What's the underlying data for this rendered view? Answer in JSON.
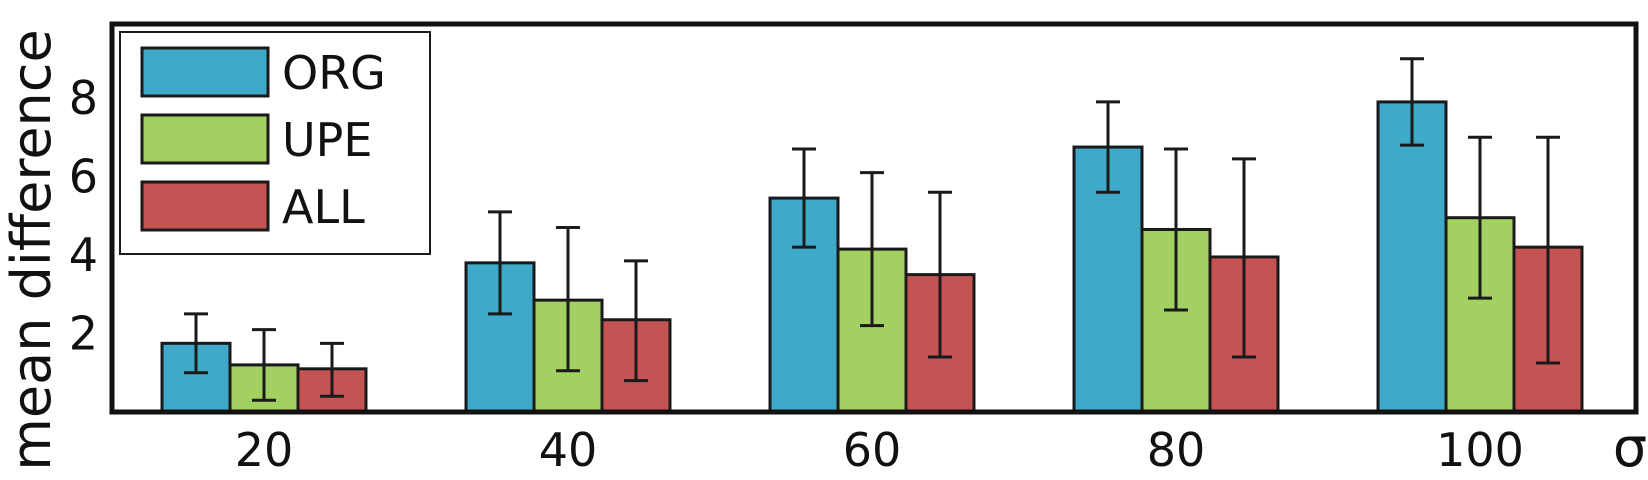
{
  "chart_data": {
    "type": "bar",
    "categories": [
      "20",
      "40",
      "60",
      "80",
      "100"
    ],
    "series": [
      {
        "name": "ORG",
        "color": "#3fa9c9",
        "values": [
          1.75,
          3.8,
          5.45,
          6.75,
          7.9
        ],
        "errors": [
          [
            1.0,
            2.5
          ],
          [
            2.5,
            5.1
          ],
          [
            4.2,
            6.7
          ],
          [
            5.6,
            7.9
          ],
          [
            6.8,
            9.0
          ]
        ]
      },
      {
        "name": "UPE",
        "color": "#a2d162",
        "values": [
          1.2,
          2.85,
          4.15,
          4.65,
          4.95
        ],
        "errors": [
          [
            0.3,
            2.1
          ],
          [
            1.05,
            4.7
          ],
          [
            2.2,
            6.1
          ],
          [
            2.6,
            6.7
          ],
          [
            2.9,
            7.0
          ]
        ]
      },
      {
        "name": "ALL",
        "color": "#c65354",
        "values": [
          1.1,
          2.35,
          3.5,
          3.95,
          4.2
        ],
        "errors": [
          [
            0.4,
            1.75
          ],
          [
            0.8,
            3.85
          ],
          [
            1.4,
            5.6
          ],
          [
            1.4,
            6.45
          ],
          [
            1.25,
            7.0
          ]
        ]
      }
    ],
    "xlabel": "σ",
    "ylabel": "mean difference",
    "yticks": [
      "2",
      "4",
      "6",
      "8"
    ],
    "ylim": [
      0,
      10
    ],
    "grid": false,
    "legend_position": "top-left"
  }
}
